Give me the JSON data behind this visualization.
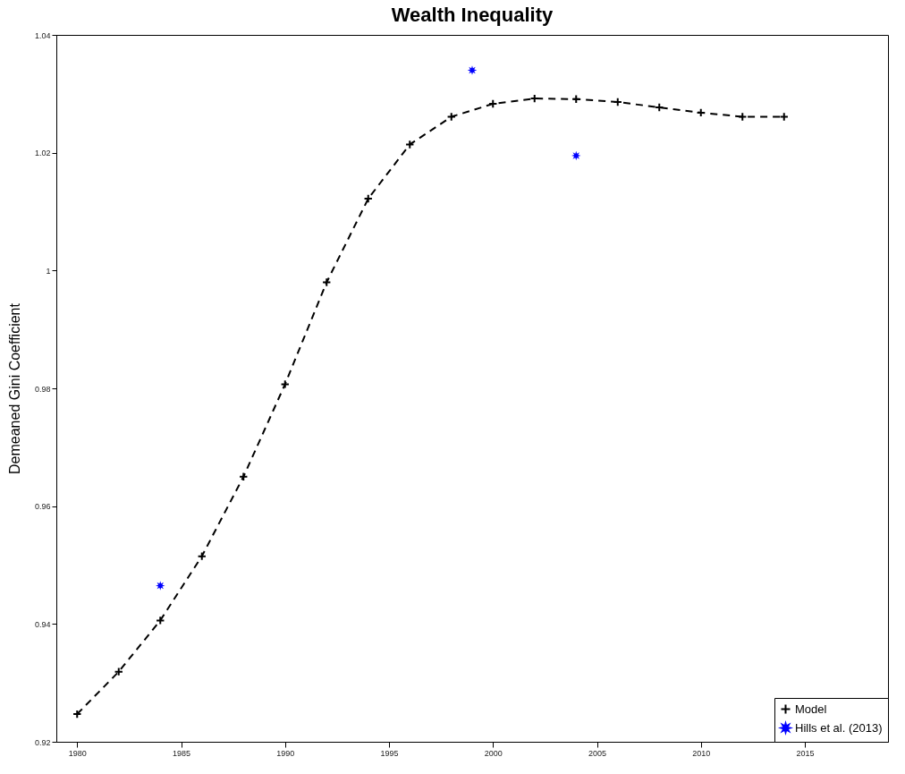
{
  "chart_data": {
    "type": "line",
    "title": "Wealth Inequality",
    "ylabel": "Demeaned Gini Coefficient",
    "xlim": [
      1979,
      2019
    ],
    "xticks": [
      1980,
      1985,
      1990,
      1995,
      2000,
      2005,
      2010,
      2015
    ],
    "ylim": [
      0.92,
      1.04
    ],
    "yticks": [
      0.92,
      0.94,
      0.96,
      0.98,
      1,
      1.02,
      1.04
    ],
    "legend": "bottom right",
    "series": [
      {
        "name": "Model",
        "type": "line",
        "color": "#000000",
        "marker": "cross",
        "line_style": "dashed",
        "x": [
          1980,
          1982,
          1984,
          1986,
          1988,
          1990,
          1992,
          1994,
          1996,
          1998,
          2000,
          2002,
          2004,
          2006,
          2008,
          2010,
          2012,
          2014
        ],
        "values": [
          0.9247,
          0.9319,
          0.9406,
          0.9515,
          0.965,
          0.9807,
          0.998,
          1.0122,
          1.0214,
          1.0261,
          1.0283,
          1.0292,
          1.0291,
          1.0286,
          1.0277,
          1.0268,
          1.0261,
          1.0261
        ]
      },
      {
        "name": "Hills et al. (2013)",
        "type": "scatter",
        "color": "#0000ff",
        "marker": "star",
        "x": [
          1984,
          1999,
          2004
        ],
        "values": [
          0.9465,
          1.034,
          1.0195
        ]
      }
    ]
  }
}
